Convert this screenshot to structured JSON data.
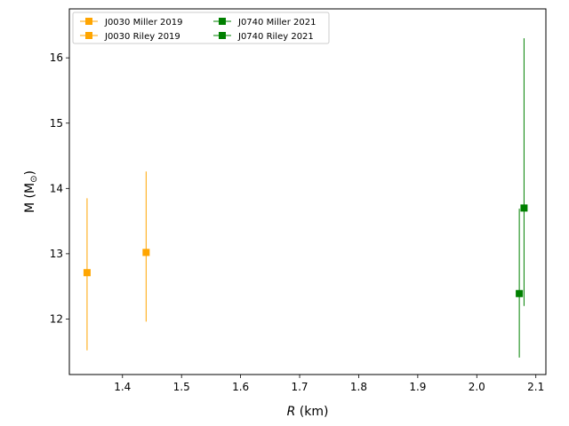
{
  "chart_data": {
    "type": "scatter",
    "title": "",
    "xlabel_main": "R",
    "xlabel_unit": " (km)",
    "ylabel": "M (M",
    "ylabel_sub": "⊙",
    "ylabel_close": ")",
    "xlim": [
      1.31,
      2.117
    ],
    "ylim": [
      11.15,
      16.75
    ],
    "x_ticks": [
      1.4,
      1.5,
      1.6,
      1.7,
      1.8,
      1.9,
      2.0,
      2.1
    ],
    "x_tick_labels": [
      "1.4",
      "1.5",
      "1.6",
      "1.7",
      "1.8",
      "1.9",
      "2.0",
      "2.1"
    ],
    "y_ticks": [
      12,
      13,
      14,
      15,
      16
    ],
    "y_tick_labels": [
      "12",
      "13",
      "14",
      "15",
      "16"
    ],
    "grid": false,
    "legend_placement": "top-left",
    "series": [
      {
        "name": "J0030 Miller 2019",
        "color": "#FFA500",
        "x": 1.34,
        "y": 12.71,
        "y_low": 11.52,
        "y_high": 13.85
      },
      {
        "name": "J0030 Riley 2019",
        "color": "#FFA500",
        "x": 1.44,
        "y": 13.02,
        "y_low": 11.96,
        "y_high": 14.26
      },
      {
        "name": "J0740 Miller 2021",
        "color": "#008000",
        "x": 2.072,
        "y": 12.39,
        "y_low": 11.41,
        "y_high": 13.69
      },
      {
        "name": "J0740 Riley 2021",
        "color": "#008000",
        "x": 2.08,
        "y": 13.7,
        "y_low": 12.2,
        "y_high": 16.3
      }
    ]
  }
}
